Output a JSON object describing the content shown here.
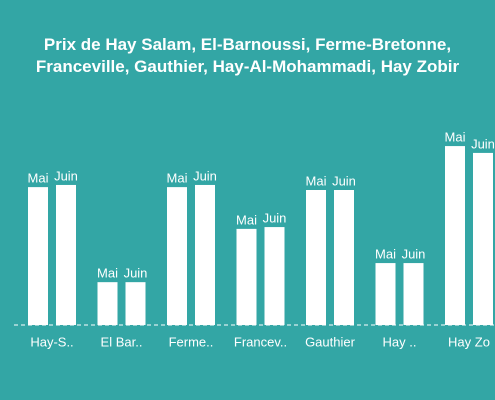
{
  "chart_data": {
    "type": "bar",
    "title": "Prix de Hay Salam, El-Barnoussi, Ferme-Bretonne, Franceville, Gauthier, Hay-Al-Mohammadi, Hay Zobir",
    "categories": [
      "Hay-S..",
      "El Bar..",
      "Ferme..",
      "Francev..",
      "Gauthier",
      "Hay ..",
      "Hay Zo"
    ],
    "series": [
      {
        "name": "Mai",
        "color": "#ffffff",
        "values": [
          38.3,
          11.9,
          38.3,
          26.7,
          37.5,
          17.2,
          49.7
        ]
      },
      {
        "name": "Juin",
        "color": "#ffffff",
        "values": [
          38.9,
          11.9,
          38.9,
          27.2,
          37.5,
          17.2,
          47.8
        ]
      }
    ],
    "ylim": [
      0,
      50
    ],
    "background": "#33a6a5"
  }
}
